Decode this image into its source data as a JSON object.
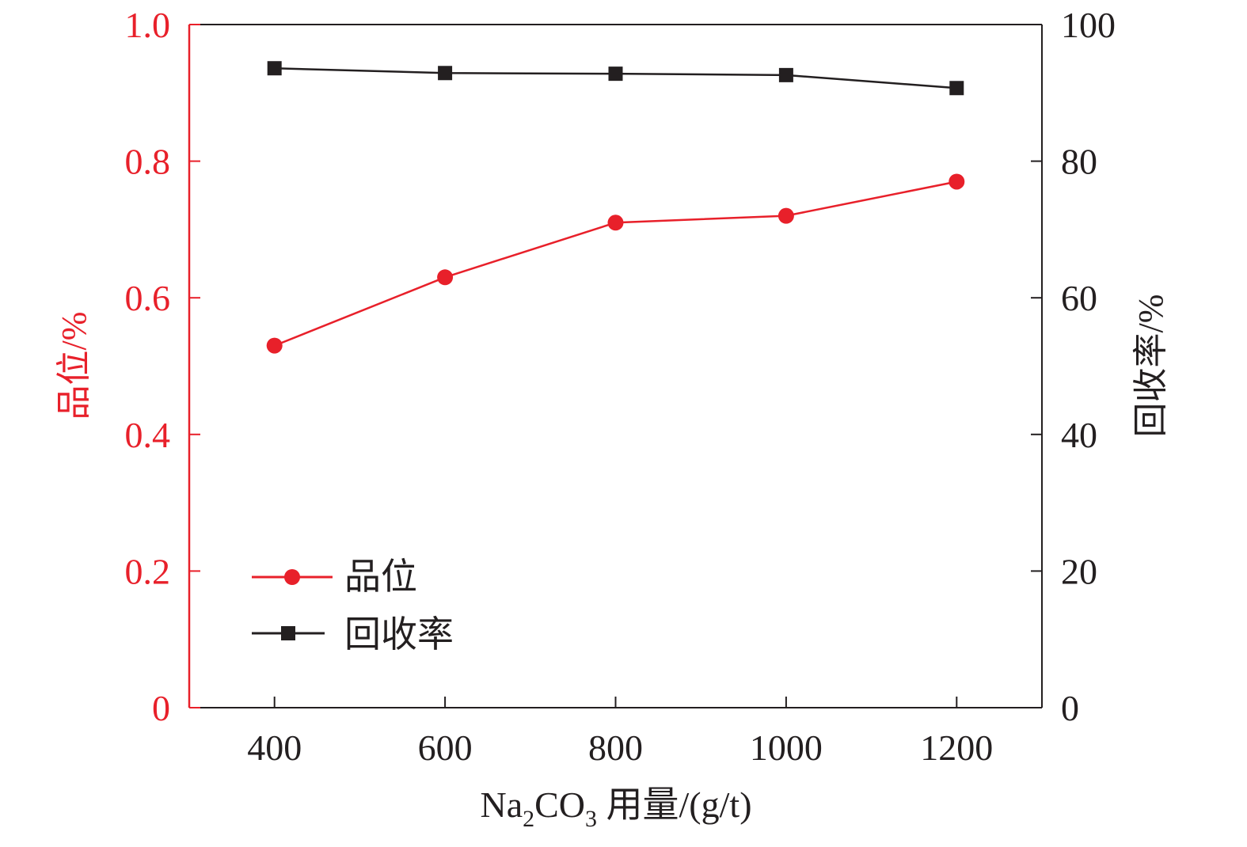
{
  "chart_data": {
    "type": "line",
    "title": "",
    "x": [
      400,
      600,
      800,
      1000,
      1200
    ],
    "xlim": [
      300,
      1300
    ],
    "xticks": [
      "400",
      "600",
      "800",
      "1000",
      "1200"
    ],
    "xlabel_parts": {
      "prefix": "Na",
      "sub1": "2",
      "mid": "CO",
      "sub2": "3",
      "suffix": " 用量/(g/t)"
    },
    "ylabel_left": "品位/%",
    "ylim_left": [
      0,
      1.0
    ],
    "yticks_left": [
      "0",
      "0.2",
      "0.4",
      "0.6",
      "0.8",
      "1.0"
    ],
    "ylabel_right": "回收率/%",
    "ylim_right": [
      0,
      100
    ],
    "yticks_right": [
      "0",
      "20",
      "40",
      "60",
      "80",
      "100"
    ],
    "grid": false,
    "legend_position": "bottom-left",
    "series": [
      {
        "name": "品位",
        "axis": "left",
        "color": "#e8202a",
        "marker": "circle",
        "values": [
          0.53,
          0.63,
          0.71,
          0.72,
          0.77
        ]
      },
      {
        "name": "回收率",
        "axis": "right",
        "color": "#231f20",
        "marker": "square",
        "values": [
          93.6,
          92.9,
          92.8,
          92.6,
          90.7
        ]
      }
    ]
  }
}
